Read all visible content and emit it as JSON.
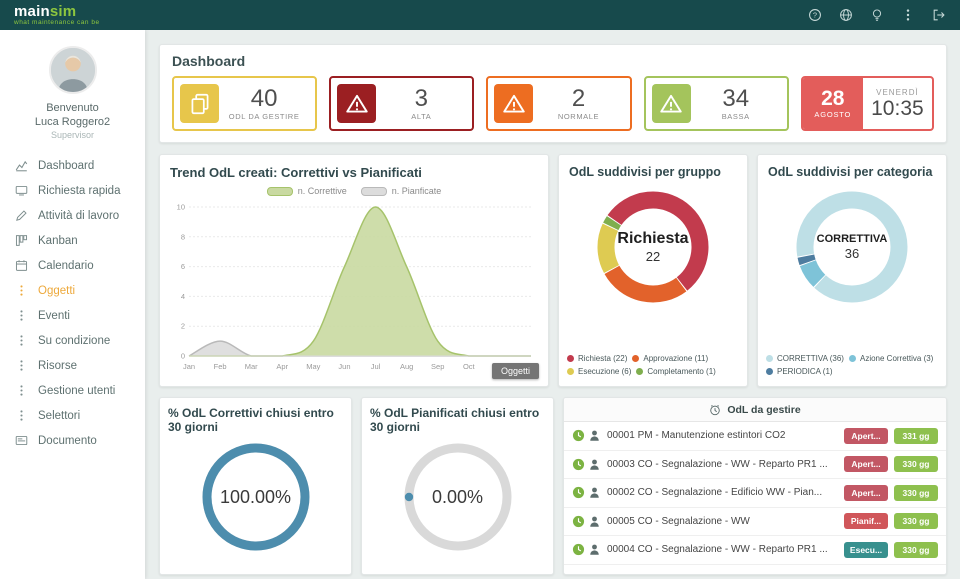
{
  "topbar": {
    "logo_main": "main",
    "logo_sim": "sim",
    "tagline": "what maintenance can be",
    "icons": [
      "help",
      "globe",
      "bulb",
      "kebab",
      "logout"
    ]
  },
  "sidebar": {
    "welcome": "Benvenuto",
    "user": "Luca Roggero2",
    "role": "Supervisor",
    "active_color": "#eda93c",
    "items": [
      {
        "label": "Dashboard",
        "icon": "dashboard",
        "active": false
      },
      {
        "label": "Richiesta rapida",
        "icon": "monitor",
        "active": false
      },
      {
        "label": "Attività di lavoro",
        "icon": "pencil",
        "active": false
      },
      {
        "label": "Kanban",
        "icon": "kanban",
        "active": false
      },
      {
        "label": "Calendario",
        "icon": "calendar",
        "active": false
      },
      {
        "label": "Oggetti",
        "icon": "dots",
        "active": true
      },
      {
        "label": "Eventi",
        "icon": "dots",
        "active": false
      },
      {
        "label": "Su condizione",
        "icon": "dots",
        "active": false
      },
      {
        "label": "Risorse",
        "icon": "dots",
        "active": false
      },
      {
        "label": "Gestione utenti",
        "icon": "dots",
        "active": false
      },
      {
        "label": "Selettori",
        "icon": "dots",
        "active": false
      },
      {
        "label": "Documento",
        "icon": "card",
        "active": false
      }
    ]
  },
  "dashboard": {
    "title": "Dashboard",
    "kpis": [
      {
        "value": "40",
        "label": "ODL DA GESTIRE",
        "color": "#e7c64b",
        "icon": "documents"
      },
      {
        "value": "3",
        "label": "ALTA",
        "color": "#9b1f22",
        "icon": "warning"
      },
      {
        "value": "2",
        "label": "NORMALE",
        "color": "#ed6d21",
        "icon": "warning"
      },
      {
        "value": "34",
        "label": "BASSA",
        "color": "#a4c45c",
        "icon": "warning"
      }
    ],
    "date": {
      "day": "28",
      "month": "AGOSTO",
      "weekday": "VENERDÌ",
      "time": "10:35",
      "color": "#e35d5b"
    }
  },
  "chart_data": [
    {
      "type": "area",
      "title": "Trend OdL creati: Correttivi vs Pianificati",
      "x": [
        "Jan",
        "Feb",
        "Mar",
        "Apr",
        "May",
        "Jun",
        "Jul",
        "Aug",
        "Sep",
        "Oct",
        "Nov",
        "Dec"
      ],
      "ylim": [
        0,
        10
      ],
      "yticks": [
        0,
        2,
        4,
        6,
        8,
        10
      ],
      "grid": true,
      "legend_position": "top",
      "series": [
        {
          "name": "n. Correttive",
          "values": [
            0,
            0,
            0,
            0,
            1,
            6,
            10,
            6,
            1,
            0,
            0,
            0
          ],
          "line_color": "#a6c36b",
          "fill_color": "#c9d9a1"
        },
        {
          "name": "n. Pianficate",
          "values": [
            0,
            1,
            0,
            0,
            0,
            0,
            0,
            0,
            0,
            0,
            0,
            0
          ],
          "line_color": "#b9b9b9",
          "fill_color": "#dcdcdc"
        }
      ],
      "tooltip": "Oggetti"
    },
    {
      "type": "pie",
      "title": "OdL suddivisi per gruppo",
      "center_label": "Richiesta",
      "center_value": "22",
      "start_deg": 215,
      "slices": [
        {
          "label": "Richiesta (22)",
          "value": 22,
          "color": "#c23b4d"
        },
        {
          "label": "Approvazione (11)",
          "value": 11,
          "color": "#e2622b"
        },
        {
          "label": "Esecuzione (6)",
          "value": 6,
          "color": "#decb52"
        },
        {
          "label": "Completamento (1)",
          "value": 1,
          "color": "#7fae4e"
        }
      ]
    },
    {
      "type": "pie",
      "title": "OdL suddivisi per categoria",
      "center_label": "CORRETTIVA",
      "center_value": "36",
      "start_deg": 170,
      "slices": [
        {
          "label": "CORRETTIVA (36)",
          "value": 36,
          "color": "#bedfe6"
        },
        {
          "label": "Azione Correttiva (3)",
          "value": 3,
          "color": "#7ec3d8"
        },
        {
          "label": "PERIODICA (1)",
          "value": 1,
          "color": "#4e7da0"
        }
      ]
    },
    {
      "type": "gauge",
      "title": "% OdL Correttivi chiusi entro 30 giorni",
      "value": 100,
      "display": "100.00%",
      "color": "#4d8dad",
      "track_color": "#d9d9d9"
    },
    {
      "type": "gauge",
      "title": "% OdL Pianificati chiusi entro 30 giorni",
      "value": 0,
      "display": "0.00%",
      "color": "#4d8dad",
      "track_color": "#d9d9d9"
    }
  ],
  "worklist": {
    "title": "OdL da gestire",
    "age_color": "#8ec04e",
    "rows": [
      {
        "text": "00001 PM - Manutenzione estintori CO2",
        "status": "Apert...",
        "status_color": "#c25764",
        "age": "331 gg"
      },
      {
        "text": "00003 CO - Segnalazione - WW - Reparto PR1 ...",
        "status": "Apert...",
        "status_color": "#c25764",
        "age": "330 gg"
      },
      {
        "text": "00002 CO - Segnalazione - Edificio WW - Pian...",
        "status": "Apert...",
        "status_color": "#c25764",
        "age": "330 gg"
      },
      {
        "text": "00005 CO - Segnalazione - WW",
        "status": "Pianif...",
        "status_color": "#d0565a",
        "age": "330 gg"
      },
      {
        "text": "00004 CO - Segnalazione - WW - Reparto PR1 ...",
        "status": "Esecu...",
        "status_color": "#38908e",
        "age": "330 gg"
      }
    ]
  }
}
